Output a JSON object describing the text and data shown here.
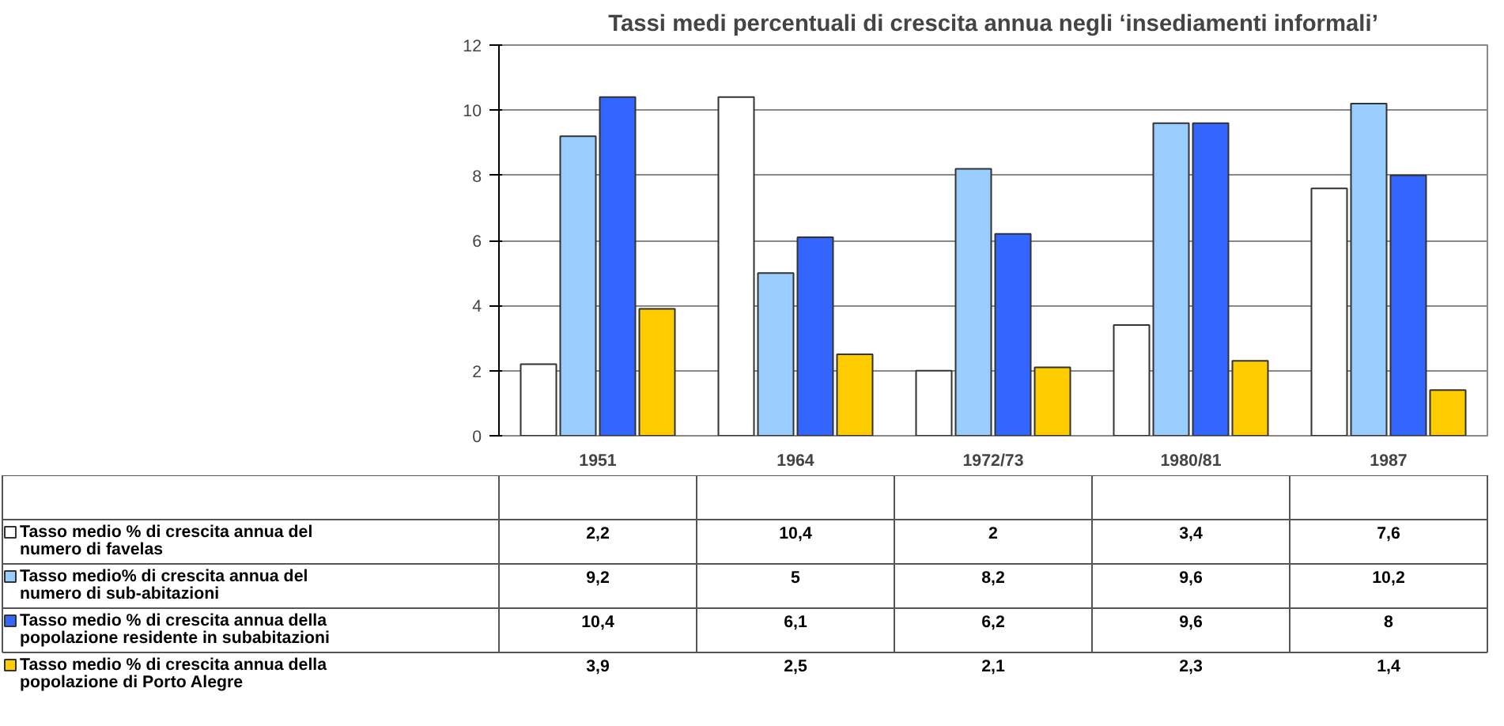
{
  "chart_data": {
    "type": "bar",
    "title": "Tassi medi percentuali di crescita annua negli ‘insediamenti informali’",
    "categories": [
      "1951",
      "1964",
      "1972/73",
      "1980/81",
      "1987"
    ],
    "series": [
      {
        "name": "Tasso medio % di crescita annua del numero di favelas",
        "color": "#ffffff",
        "values": [
          2.2,
          10.4,
          2,
          3.4,
          7.6
        ],
        "value_labels": [
          "2,2",
          "10,4",
          "2",
          "3,4",
          "7,6"
        ]
      },
      {
        "name": "Tasso medio% di crescita annua del numero di sub-abitazioni",
        "color": "#99ccff",
        "values": [
          9.2,
          5,
          8.2,
          9.6,
          10.2
        ],
        "value_labels": [
          "9,2",
          "5",
          "8,2",
          "9,6",
          "10,2"
        ]
      },
      {
        "name": "Tasso medio % di crescita annua della popolazione residente in subabitazioni",
        "color": "#3366ff",
        "values": [
          10.4,
          6.1,
          6.2,
          9.6,
          8
        ],
        "value_labels": [
          "10,4",
          "6,1",
          "6,2",
          "9,6",
          "8"
        ]
      },
      {
        "name": "Tasso medio % di crescita annua della popolazione di Porto Alegre",
        "color": "#ffcc00",
        "values": [
          3.9,
          2.5,
          2.1,
          2.3,
          1.4
        ],
        "value_labels": [
          "3,9",
          "2,5",
          "2,1",
          "2,3",
          "1,4"
        ]
      }
    ],
    "ylim": [
      0,
      12
    ],
    "yticks": [
      0,
      2,
      4,
      6,
      8,
      10,
      12
    ],
    "grid": "y",
    "legend": "bottom left"
  }
}
